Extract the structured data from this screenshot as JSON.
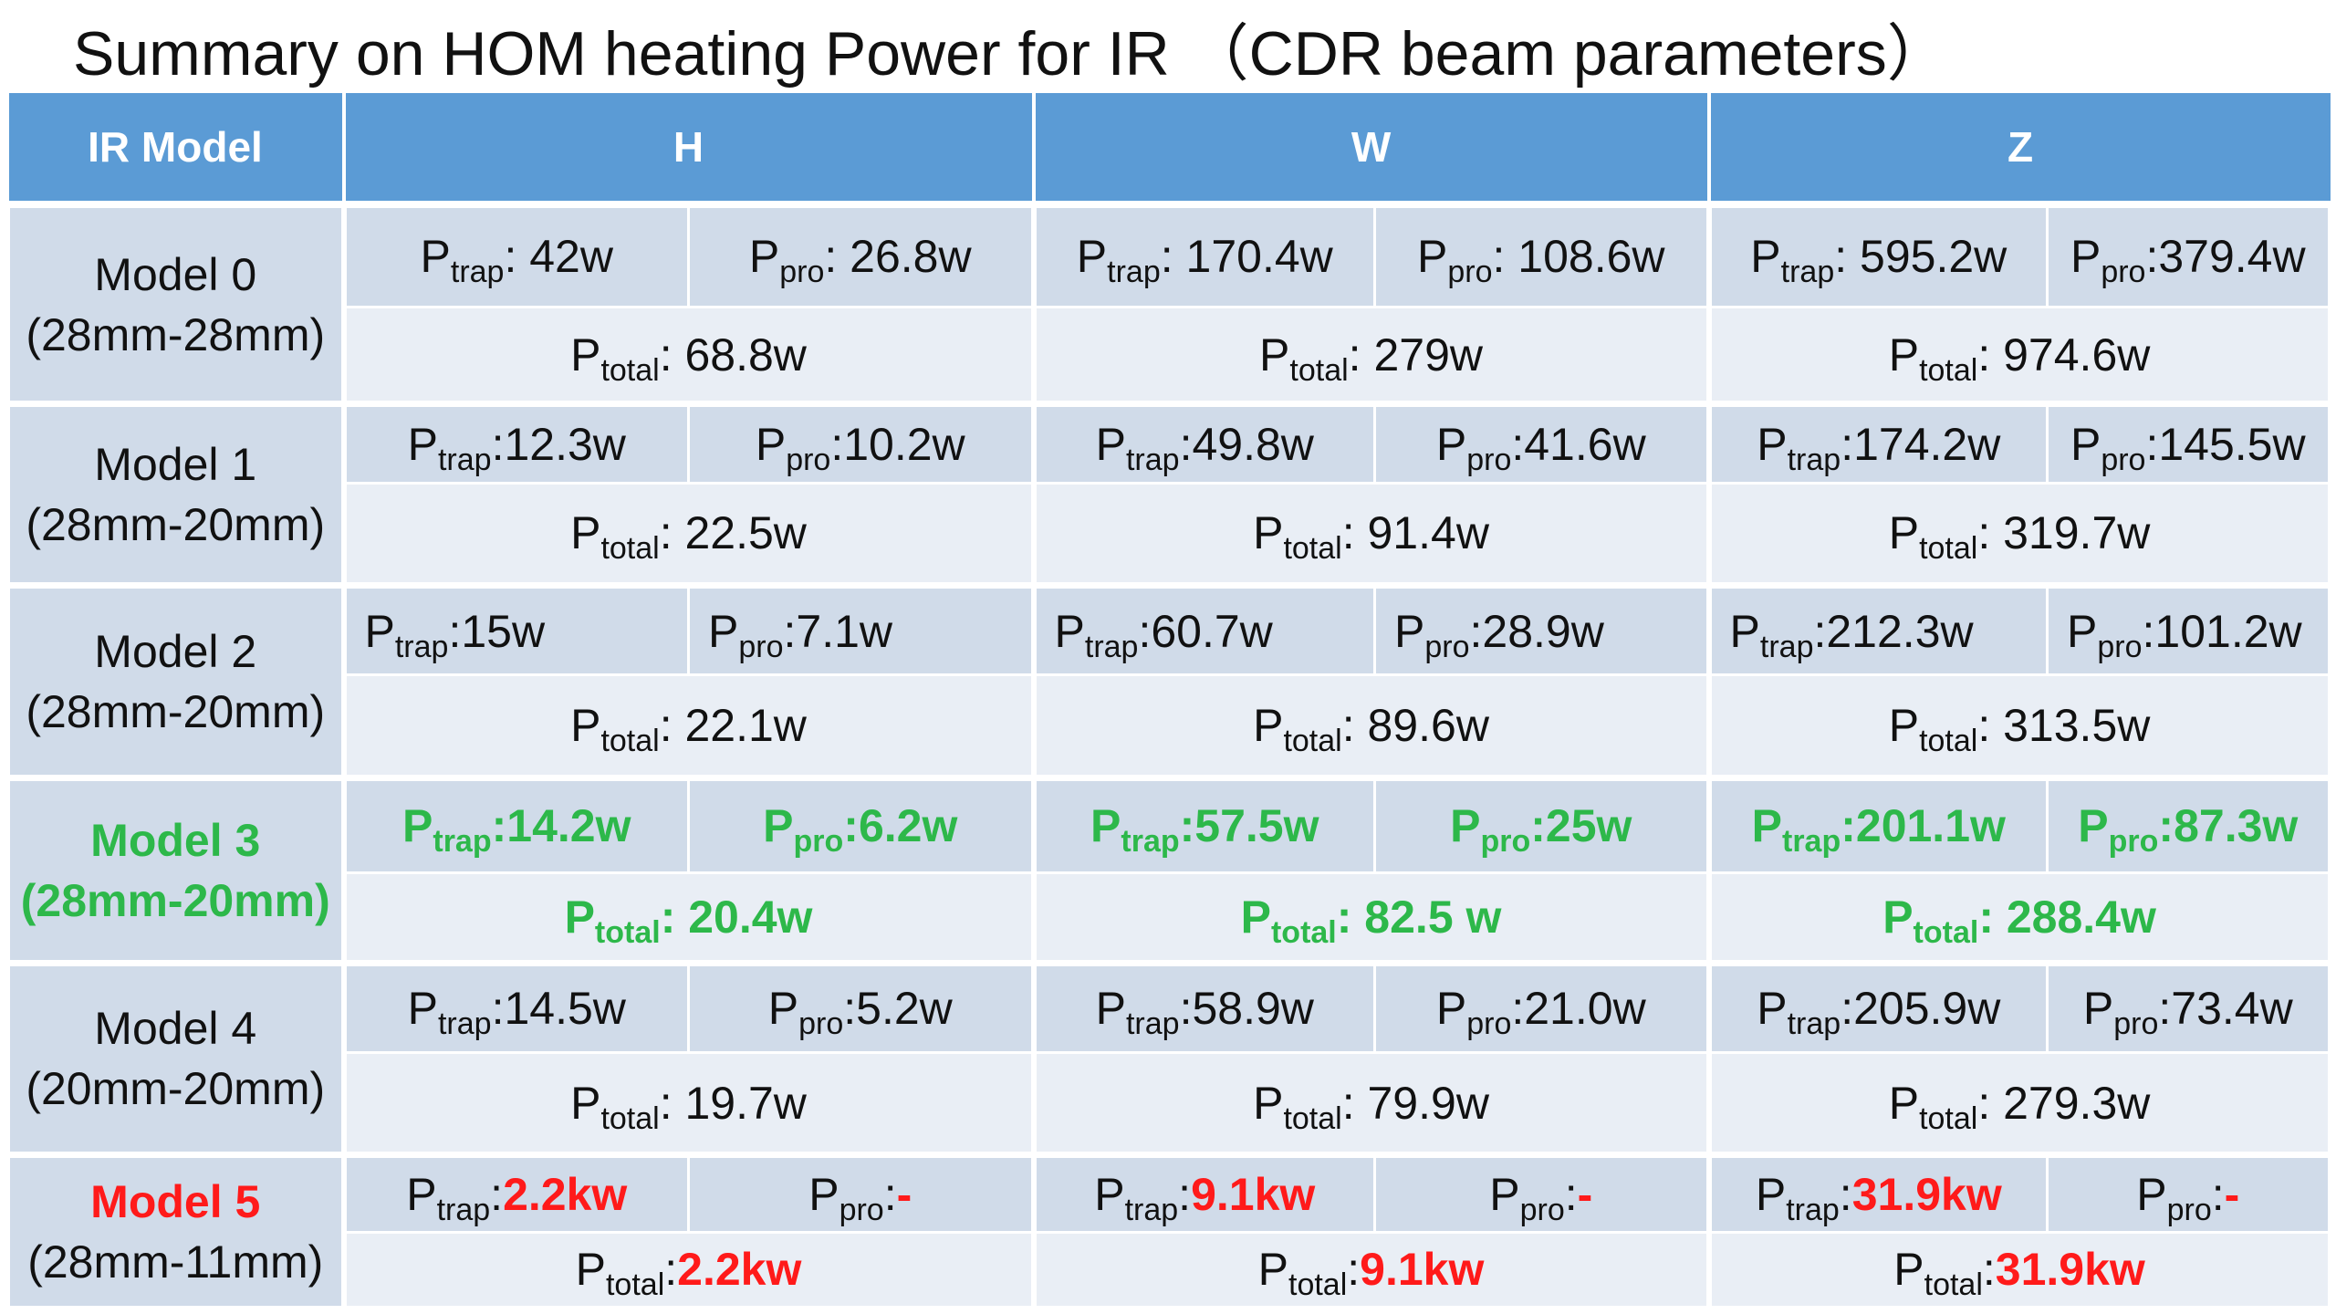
{
  "title": "Summary on HOM heating Power for IR （CDR beam parameters）",
  "header": {
    "ir_model": "IR Model",
    "h": "H",
    "w": "W",
    "z": "Z"
  },
  "labels": {
    "p": "P",
    "trap": "trap",
    "pro": "pro",
    "total": "total"
  },
  "rows": [
    {
      "model": "Model 0",
      "size": "(28mm-28mm)",
      "H": {
        "trap": ": 42w",
        "pro": ": 26.8w",
        "total": ": 68.8w"
      },
      "W": {
        "trap": ": 170.4w",
        "pro": ": 108.6w",
        "total": ": 279w"
      },
      "Z": {
        "trap": ": 595.2w",
        "pro": ":379.4w",
        "total": ": 974.6w"
      }
    },
    {
      "model": "Model 1",
      "size": "(28mm-20mm)",
      "H": {
        "trap": ":12.3w",
        "pro": ":10.2w",
        "total": ": 22.5w"
      },
      "W": {
        "trap": ":49.8w",
        "pro": ":41.6w",
        "total": ": 91.4w"
      },
      "Z": {
        "trap": ":174.2w",
        "pro": ":145.5w",
        "total": ": 319.7w"
      }
    },
    {
      "model": "Model 2",
      "size": "(28mm-20mm)",
      "H": {
        "trap": ":15w",
        "pro": ":7.1w",
        "total": ": 22.1w"
      },
      "W": {
        "trap": ":60.7w",
        "pro": ":28.9w",
        "total": ": 89.6w"
      },
      "Z": {
        "trap": ":212.3w",
        "pro": ":101.2w",
        "total": ": 313.5w"
      }
    },
    {
      "model": "Model 3",
      "size": "(28mm-20mm)",
      "H": {
        "trap": ":14.2w",
        "pro": ":6.2w",
        "total": ": 20.4w"
      },
      "W": {
        "trap": ":57.5w",
        "pro": ":25w",
        "total": ": 82.5 w"
      },
      "Z": {
        "trap": ":201.1w",
        "pro": ":87.3w",
        "total": ": 288.4w"
      }
    },
    {
      "model": "Model 4",
      "size": "(20mm-20mm)",
      "H": {
        "trap": ":14.5w",
        "pro": ":5.2w",
        "total": ": 19.7w"
      },
      "W": {
        "trap": ":58.9w",
        "pro": ":21.0w",
        "total": ": 79.9w"
      },
      "Z": {
        "trap": ":205.9w",
        "pro": ":73.4w",
        "total": ":  279.3w"
      }
    },
    {
      "model": "Model 5",
      "size": "(28mm-11mm)",
      "H": {
        "trap_sep": ":",
        "trap": "2.2kw",
        "pro_sep": ":",
        "pro": "-",
        "total_sep": ":",
        "total": "2.2kw"
      },
      "W": {
        "trap_sep": ":",
        "trap": "9.1kw",
        "pro_sep": ":",
        "pro": "-",
        "total_sep": ":",
        "total": "9.1kw"
      },
      "Z": {
        "trap_sep": ":",
        "trap": "31.9kw",
        "pro_sep": ":",
        "pro": "-",
        "total_sep": ":",
        "total": "31.9kw"
      }
    }
  ],
  "colors": {
    "header_bg": "#5b9bd5",
    "row_bg": "#d0dbe9",
    "row_bg_light": "#e9eef5",
    "highlight_green": "#2db84a",
    "highlight_red": "#ff1a1a"
  }
}
